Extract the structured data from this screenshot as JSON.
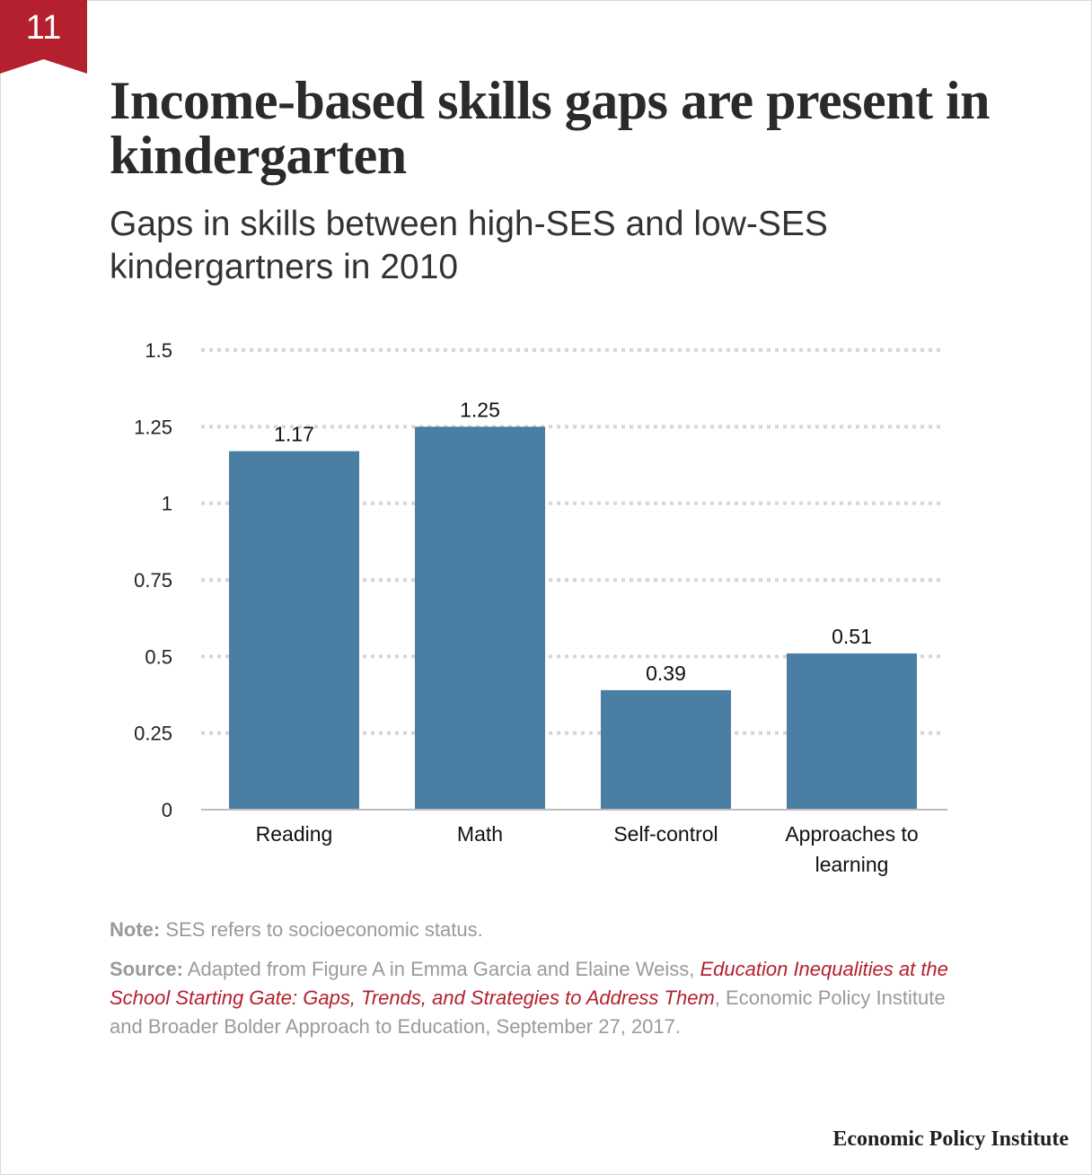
{
  "badge": {
    "number": "11",
    "color": "#b4202e"
  },
  "header": {
    "title": "Income-based skills gaps are present in kindergarten",
    "subtitle": "Gaps in skills between high-SES and low-SES kindergartners in 2010"
  },
  "chart_data": {
    "type": "bar",
    "categories": [
      "Reading",
      "Math",
      "Self-control",
      "Approaches to learning"
    ],
    "values": [
      1.17,
      1.25,
      0.39,
      0.51
    ],
    "value_labels": [
      "1.17",
      "1.25",
      "0.39",
      "0.51"
    ],
    "y_ticks": [
      0,
      0.25,
      0.5,
      0.75,
      1,
      1.25,
      1.5
    ],
    "y_tick_labels": [
      "0",
      "0.25",
      "0.5",
      "0.75",
      "1",
      "1.25",
      "1.5"
    ],
    "ylim": [
      0,
      1.5
    ],
    "grid": "dotted horizontal",
    "bar_color": "#4a7fa3"
  },
  "footer": {
    "note_lead": "Note:",
    "note_text": "SES refers to socioeconomic status.",
    "source_lead": "Source:",
    "source_text_1": "Adapted from Figure A in Emma Garcia and Elaine Weiss,",
    "source_publication": "Education Inequalities at the School Starting Gate: Gaps, Trends, and Strategies to Address Them",
    "source_text_2": ", Economic Policy Institute and Broader Bolder Approach to Education, September 27, 2017.",
    "brand": "Economic Policy Institute"
  }
}
